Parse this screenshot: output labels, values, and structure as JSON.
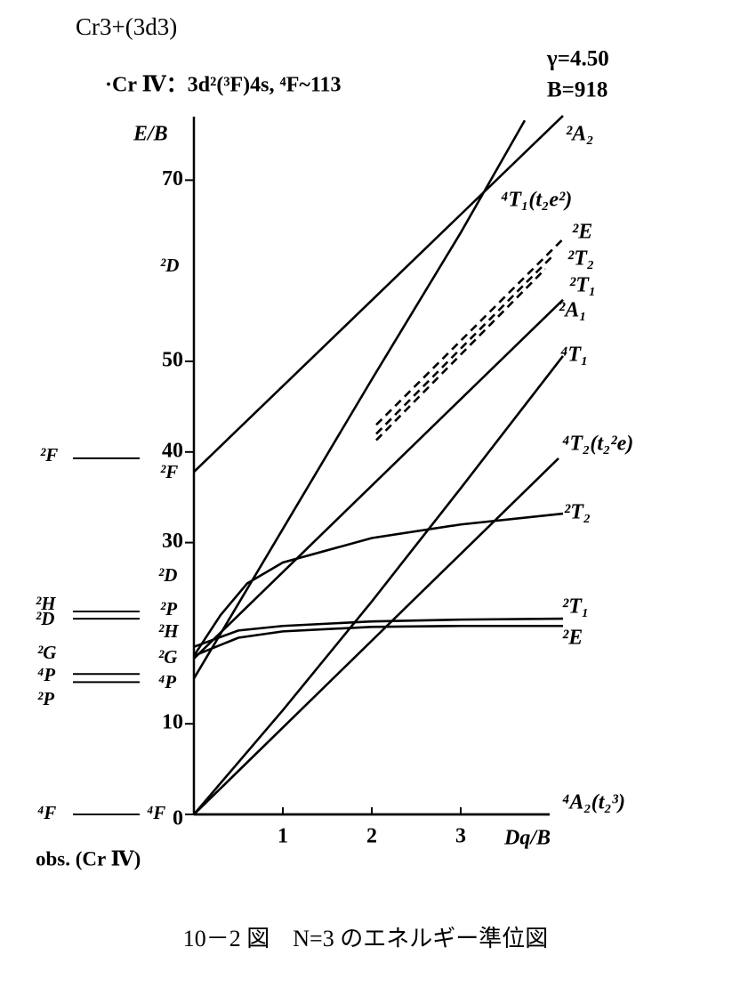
{
  "chart_data": {
    "type": "line",
    "title": "Cr3+(3d3)",
    "subtitle": "·Cr Ⅳ：3d²(³F)4s, ⁴F~113",
    "params": [
      "γ=4.50",
      "B=918"
    ],
    "ylabel": "E/B",
    "xlabel": "Dq/B",
    "obs_label": "obs. (Cr Ⅳ)",
    "caption": "10－2 図　N=3 のエネルギー準位図",
    "xlim": [
      0,
      4.0
    ],
    "ylim": [
      0,
      77
    ],
    "xticks": [
      1,
      2,
      3
    ],
    "yticks": [
      0,
      10,
      30,
      40,
      50,
      70
    ],
    "ion_terms": [
      "²D",
      "²F",
      "²D",
      "²P",
      "²H",
      "²G",
      "⁴P",
      "⁴F"
    ],
    "obs_levels": [
      39.3,
      22.4,
      21.6,
      15.5,
      14.6,
      0
    ],
    "obs_terms": [
      "²F",
      "²H",
      "²D",
      "²G",
      "⁴P",
      "²P",
      "⁴F"
    ],
    "series": [
      {
        "name": "²A₂",
        "color": "#000",
        "x": [
          0,
          4.15
        ],
        "values": [
          37.8,
          77.1
        ]
      },
      {
        "name": "⁴T₁(t₂e²)",
        "color": "#000",
        "x": [
          0,
          1,
          2,
          3,
          3.72
        ],
        "values": [
          15,
          31.5,
          48,
          64.2,
          76.6
        ]
      },
      {
        "name": "²E",
        "color": "#000",
        "dashed": true,
        "x": [
          2.05,
          4.15
        ],
        "values": [
          43,
          63.5
        ]
      },
      {
        "name": "²T₂",
        "color": "#000",
        "dashed": true,
        "x": [
          2.05,
          4.05
        ],
        "values": [
          42,
          61.8
        ]
      },
      {
        "name": "²T₁",
        "color": "#000",
        "dashed": true,
        "x": [
          2.05,
          3.95
        ],
        "values": [
          41.3,
          60.2
        ]
      },
      {
        "name": "²A₁",
        "color": "#000",
        "x": [
          0,
          4.15
        ],
        "values": [
          17.2,
          56.8
        ]
      },
      {
        "name": "⁴T₁",
        "color": "#000",
        "x": [
          0,
          1,
          2,
          3,
          4.15
        ],
        "values": [
          0,
          11.5,
          23.5,
          36,
          50.6
        ]
      },
      {
        "name": "⁴T₂(t₂²e)",
        "color": "#000",
        "x": [
          0,
          4.1
        ],
        "values": [
          0,
          39.3
        ]
      },
      {
        "name": "²T₂",
        "color": "#000",
        "x": [
          0,
          0.3,
          0.6,
          1,
          2,
          3,
          4.15
        ],
        "values": [
          17.5,
          22,
          25.5,
          27.8,
          30.5,
          32,
          33.2
        ]
      },
      {
        "name": "²T₁",
        "color": "#000",
        "x": [
          0,
          0.5,
          1,
          2,
          3,
          4.15
        ],
        "values": [
          18.5,
          20.3,
          20.8,
          21.3,
          21.5,
          21.6
        ]
      },
      {
        "name": "²E",
        "color": "#000",
        "x": [
          0,
          0.5,
          1,
          2,
          3,
          4.15
        ],
        "values": [
          17.5,
          19.5,
          20.2,
          20.7,
          20.8,
          20.8
        ]
      },
      {
        "name": "⁴A₂(t₂³)",
        "color": "#000",
        "x": [
          0,
          4.0
        ],
        "values": [
          0,
          0
        ]
      }
    ]
  }
}
